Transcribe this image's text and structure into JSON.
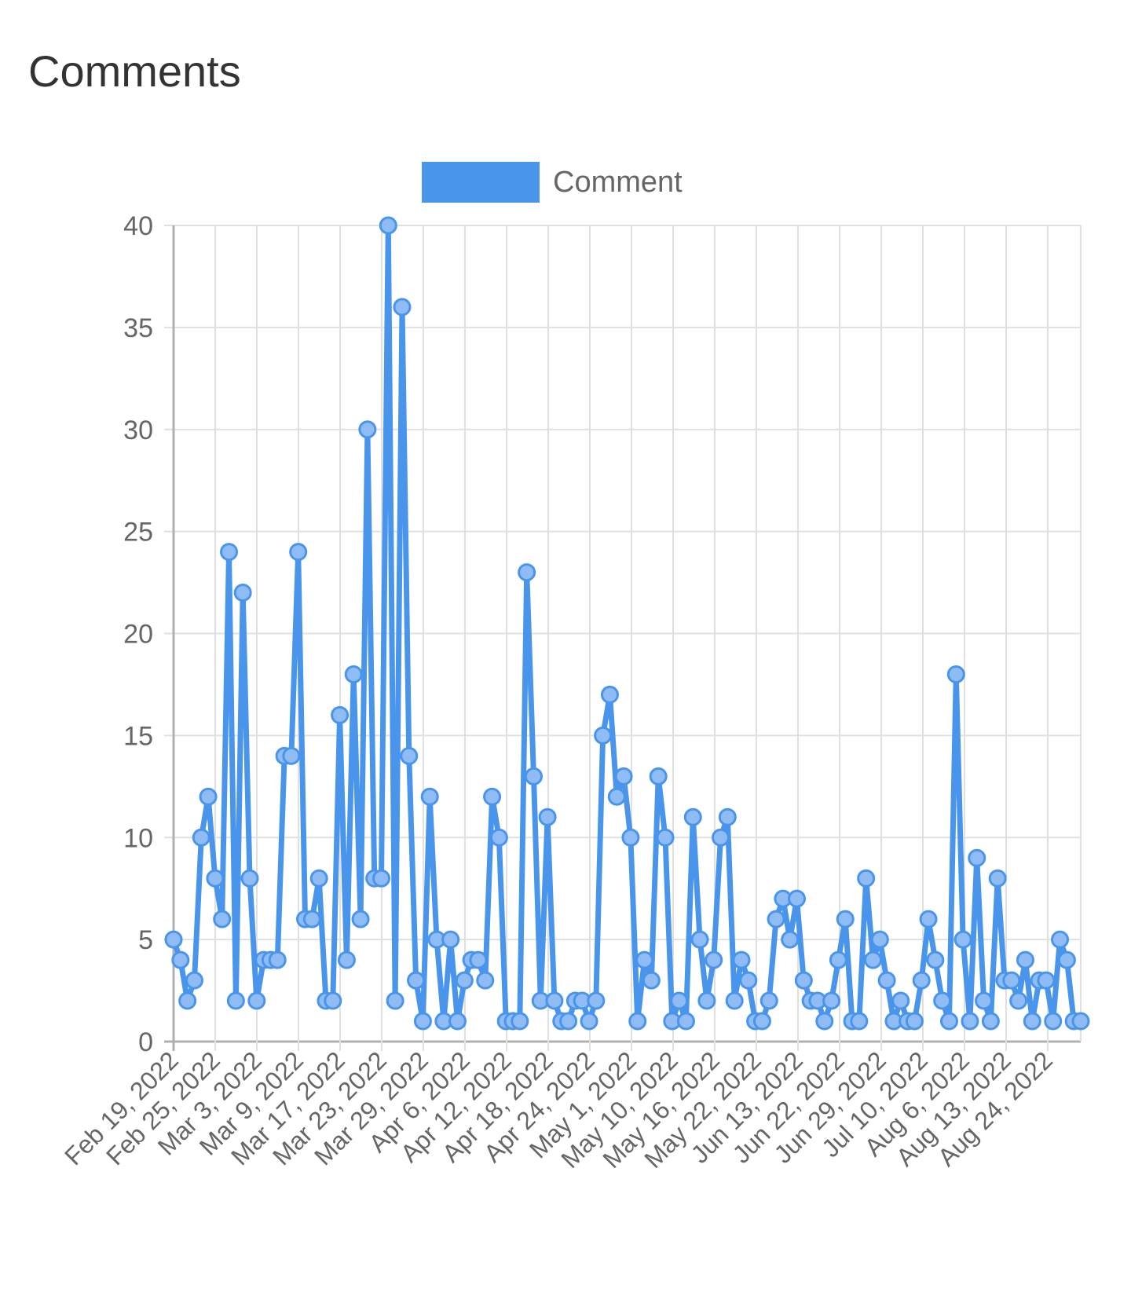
{
  "page": {
    "title": "Comments"
  },
  "chart_data": {
    "type": "line",
    "title": "Comments",
    "xlabel": "",
    "ylabel": "",
    "ylim": [
      0,
      40
    ],
    "y_ticks": [
      0,
      5,
      10,
      15,
      20,
      25,
      30,
      35,
      40
    ],
    "grid": true,
    "legend_position": "top",
    "colors": {
      "series": "#4a95ec",
      "point_fill": "#8fbcf4",
      "grid": "#e0e0e0",
      "axis": "#b0b0b0"
    },
    "x_tick_labels": [
      "Feb 19, 2022",
      "Feb 25, 2022",
      "Mar 3, 2022",
      "Mar 9, 2022",
      "Mar 17, 2022",
      "Mar 23, 2022",
      "Mar 29, 2022",
      "Apr 6, 2022",
      "Apr 12, 2022",
      "Apr 18, 2022",
      "Apr 24, 2022",
      "May 1, 2022",
      "May 10, 2022",
      "May 16, 2022",
      "May 22, 2022",
      "Jun 13, 2022",
      "Jun 22, 2022",
      "Jun 29, 2022",
      "Jul 10, 2022",
      "Aug 6, 2022",
      "Aug 13, 2022",
      "Aug 24, 2022"
    ],
    "series": [
      {
        "name": "Comment",
        "values": [
          5,
          4,
          2,
          3,
          10,
          12,
          8,
          6,
          24,
          2,
          22,
          8,
          2,
          4,
          4,
          4,
          14,
          14,
          24,
          6,
          6,
          8,
          2,
          2,
          16,
          4,
          18,
          6,
          30,
          8,
          8,
          40,
          2,
          36,
          14,
          3,
          1,
          12,
          5,
          1,
          5,
          1,
          3,
          4,
          4,
          3,
          12,
          10,
          1,
          1,
          1,
          23,
          13,
          2,
          11,
          2,
          1,
          1,
          2,
          2,
          1,
          2,
          15,
          17,
          12,
          13,
          10,
          1,
          4,
          3,
          13,
          10,
          1,
          2,
          1,
          11,
          5,
          2,
          4,
          10,
          11,
          2,
          4,
          3,
          1,
          1,
          2,
          6,
          7,
          5,
          7,
          3,
          2,
          2,
          1,
          2,
          4,
          6,
          1,
          1,
          8,
          4,
          5,
          3,
          1,
          2,
          1,
          1,
          3,
          6,
          4,
          2,
          1,
          18,
          5,
          1,
          9,
          2,
          1,
          8,
          3,
          3,
          2,
          4,
          1,
          3,
          3,
          1,
          5,
          4,
          1,
          1
        ]
      }
    ]
  }
}
